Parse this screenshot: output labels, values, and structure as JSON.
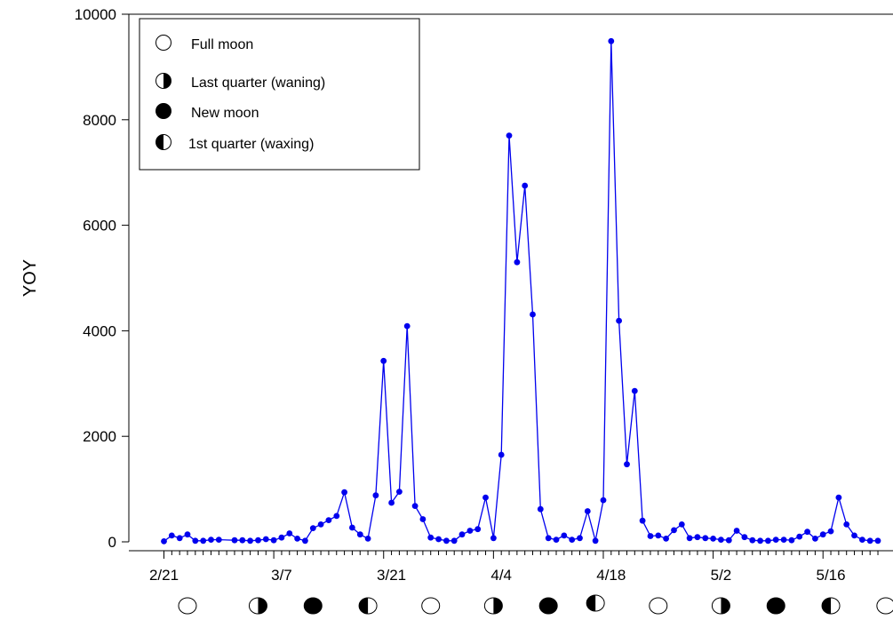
{
  "chart_data": {
    "type": "line",
    "title": "",
    "xlabel": "",
    "ylabel": "YOY",
    "ylim": [
      0,
      10000
    ],
    "yticks": [
      0,
      2000,
      4000,
      6000,
      8000,
      10000
    ],
    "xticks": [
      "2/21",
      "3/7",
      "3/21",
      "4/4",
      "4/18",
      "5/2",
      "5/16"
    ],
    "grid": false,
    "legend_position": "top-left",
    "series_color": "#0000ee",
    "legend": [
      {
        "phase": "full",
        "label": "Full moon"
      },
      {
        "phase": "last",
        "label": "Last quarter (waning)"
      },
      {
        "phase": "new",
        "label": "New moon"
      },
      {
        "phase": "first",
        "label": "1st quarter (waxing)"
      }
    ],
    "moon_phases": [
      {
        "date": "2/24",
        "phase": "full"
      },
      {
        "date": "3/4",
        "phase": "last"
      },
      {
        "date": "3/11",
        "phase": "new"
      },
      {
        "date": "3/18",
        "phase": "first"
      },
      {
        "date": "3/26",
        "phase": "full"
      },
      {
        "date": "4/3",
        "phase": "last"
      },
      {
        "date": "4/10",
        "phase": "new"
      },
      {
        "date": "4/16",
        "phase": "first"
      },
      {
        "date": "4/24",
        "phase": "full"
      },
      {
        "date": "5/2",
        "phase": "last"
      },
      {
        "date": "5/9",
        "phase": "new"
      },
      {
        "date": "5/16",
        "phase": "first"
      },
      {
        "date": "5/23",
        "phase": "full"
      }
    ],
    "series": [
      {
        "x": [
          "2/21",
          "2/22",
          "2/23",
          "2/24",
          "2/25",
          "2/26",
          "2/27",
          "2/28",
          "3/1",
          "3/2",
          "3/3",
          "3/4",
          "3/5",
          "3/6",
          "3/7",
          "3/8",
          "3/9",
          "3/10",
          "3/11",
          "3/12",
          "3/13",
          "3/14",
          "3/15",
          "3/16",
          "3/17",
          "3/18",
          "3/19",
          "3/20",
          "3/21",
          "3/22",
          "3/23",
          "3/24",
          "3/25",
          "3/26",
          "3/27",
          "3/28",
          "3/29",
          "3/30",
          "3/31",
          "4/1",
          "4/2",
          "4/3",
          "4/4",
          "4/5",
          "4/6",
          "4/7",
          "4/8",
          "4/9",
          "4/10",
          "4/11",
          "4/12",
          "4/13",
          "4/14",
          "4/15",
          "4/16",
          "4/17",
          "4/18",
          "4/19",
          "4/20",
          "4/21",
          "4/22",
          "4/23",
          "4/24",
          "4/25",
          "4/26",
          "4/27",
          "4/28",
          "4/29",
          "4/30",
          "5/1",
          "5/2",
          "5/3",
          "5/4",
          "5/5",
          "5/6",
          "5/7",
          "5/8",
          "5/9",
          "5/10",
          "5/11",
          "5/12",
          "5/13",
          "5/14",
          "5/15",
          "5/16",
          "5/17",
          "5/18",
          "5/19",
          "5/20",
          "5/21",
          "5/22"
        ],
        "values": [
          10,
          120,
          70,
          140,
          20,
          20,
          40,
          40,
          30,
          30,
          20,
          30,
          50,
          30,
          80,
          160,
          60,
          20,
          260,
          330,
          410,
          490,
          940,
          270,
          140,
          60,
          880,
          3430,
          740,
          950,
          4090,
          680,
          430,
          80,
          50,
          20,
          20,
          140,
          210,
          240,
          840,
          70,
          1650,
          7700,
          5300,
          6750,
          4310,
          620,
          70,
          40,
          120,
          40,
          70,
          580,
          20,
          790,
          9490,
          4190,
          1470,
          2860,
          400,
          110,
          120,
          60,
          220,
          330,
          70,
          90,
          70,
          60,
          40,
          30,
          210,
          90,
          30,
          20,
          20,
          40,
          40,
          30,
          100,
          190,
          60,
          140,
          200,
          840,
          330,
          120,
          40,
          20,
          20
        ]
      }
    ]
  }
}
